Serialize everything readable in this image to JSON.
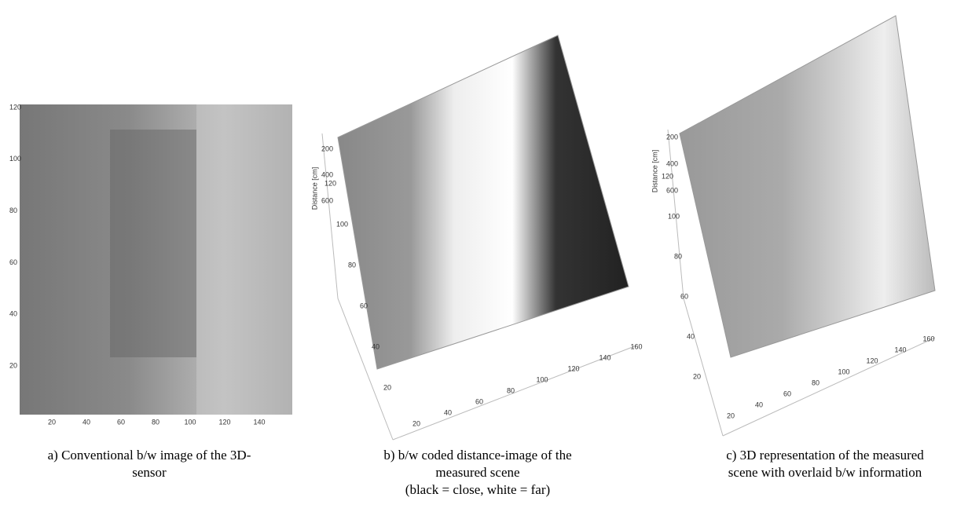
{
  "panels": [
    {
      "x_ticks": [
        20,
        40,
        60,
        80,
        100,
        120,
        140
      ],
      "y_ticks": [
        120,
        100,
        80,
        60,
        40,
        20
      ],
      "caption": [
        "a) Conventional b/w image of the 3D-",
        "sensor"
      ]
    },
    {
      "axis_label": "Distance [cm]",
      "z_ticks": [
        200,
        400,
        600
      ],
      "y_ticks": [
        120,
        100,
        80,
        60,
        40,
        20
      ],
      "x_ticks": [
        20,
        40,
        60,
        80,
        100,
        120,
        140,
        160
      ],
      "caption": [
        "b) b/w coded distance-image of the",
        "measured scene",
        "(black = close, white = far)"
      ]
    },
    {
      "axis_label": "Distance [cm]",
      "z_ticks": [
        200,
        400,
        600
      ],
      "y_ticks": [
        120,
        100,
        80,
        60,
        40,
        20
      ],
      "x_ticks": [
        20,
        40,
        60,
        80,
        100,
        120,
        140,
        160
      ],
      "caption": [
        "c) 3D representation of the measured",
        "scene with overlaid b/w information"
      ]
    }
  ]
}
